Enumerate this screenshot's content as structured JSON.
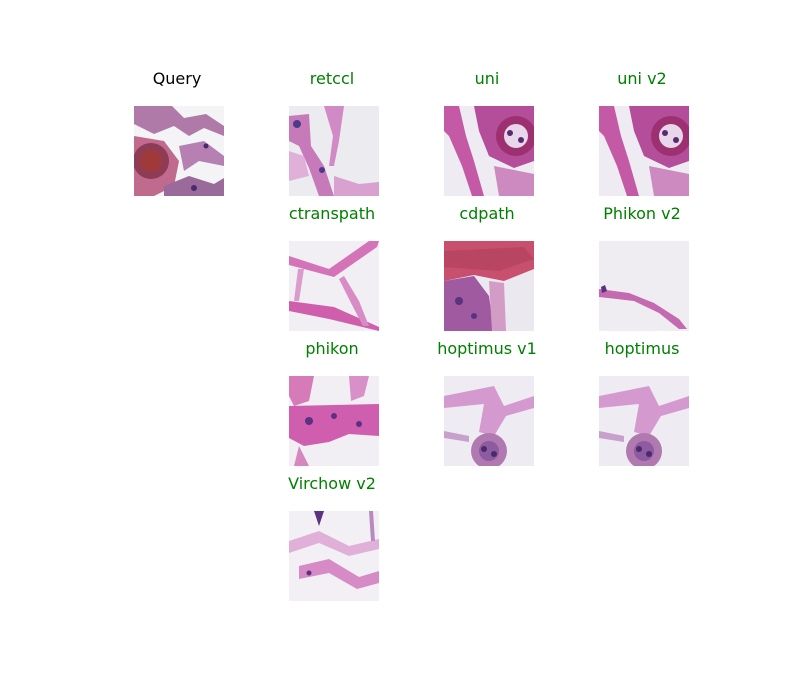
{
  "colors": {
    "query_title": "#000000",
    "match_title": "#008000"
  },
  "query": {
    "label": "Query"
  },
  "results": [
    {
      "label": "retccl"
    },
    {
      "label": "uni"
    },
    {
      "label": "uni v2"
    },
    {
      "label": "ctranspath"
    },
    {
      "label": "cdpath"
    },
    {
      "label": "Phikon v2"
    },
    {
      "label": "phikon"
    },
    {
      "label": "hoptimus v1"
    },
    {
      "label": "hoptimus"
    },
    {
      "label": "Virchow v2"
    }
  ]
}
